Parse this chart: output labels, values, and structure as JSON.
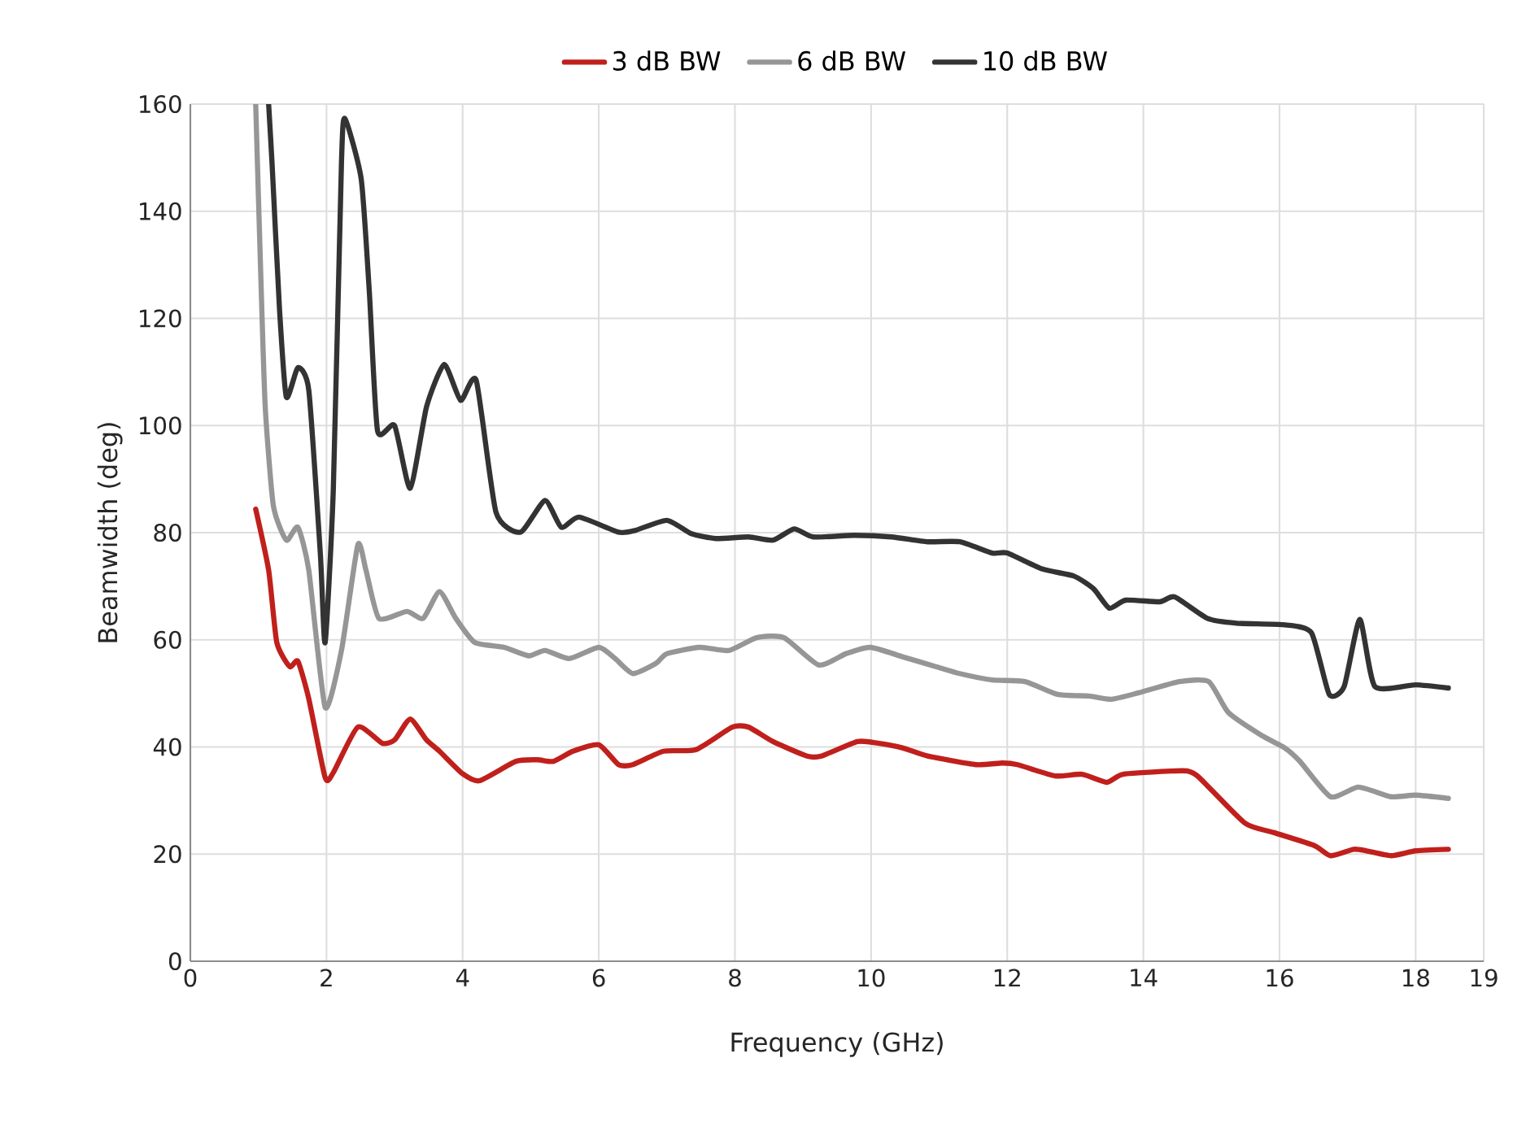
{
  "chart_data": {
    "type": "line",
    "xlabel": "Frequency (GHz)",
    "ylabel": "Beamwidth (deg)",
    "xlim": [
      0,
      19
    ],
    "xticks": [
      0,
      2,
      4,
      6,
      8,
      10,
      12,
      14,
      16,
      18,
      19
    ],
    "ylim": [
      0,
      160
    ],
    "yticks": [
      0,
      20,
      40,
      60,
      80,
      100,
      120,
      140,
      160
    ],
    "grid": true,
    "legend": "top",
    "marker": "none",
    "line_style": "solid",
    "series": [
      {
        "name": "3 dB BW",
        "color": "#c0201c",
        "x": [
          0.96,
          1.15,
          1.27,
          1.46,
          1.58,
          1.74,
          1.98,
          2.1,
          2.46,
          2.82,
          3.0,
          3.23,
          3.47,
          3.66,
          4.0,
          4.25,
          4.78,
          5.1,
          5.33,
          5.62,
          6.0,
          6.29,
          6.5,
          6.95,
          7.43,
          7.96,
          8.2,
          8.56,
          9.06,
          9.27,
          9.8,
          10.1,
          10.47,
          10.83,
          11.54,
          11.93,
          12.15,
          12.7,
          13.1,
          13.46,
          13.7,
          14.41,
          14.65,
          14.82,
          15.49,
          15.92,
          16.51,
          16.75,
          17.09,
          17.28,
          17.64,
          18.0,
          18.48
        ],
        "values": [
          84.4,
          73,
          59.5,
          55,
          56,
          49,
          34.3,
          35.2,
          43.7,
          40.7,
          41.3,
          45.2,
          41.3,
          39.2,
          35,
          33.7,
          37.3,
          37.6,
          37.3,
          39.2,
          40.4,
          36.7,
          36.7,
          39.2,
          39.5,
          43.7,
          43.7,
          41,
          38.3,
          38.3,
          41,
          40.7,
          39.8,
          38.3,
          36.7,
          37,
          36.7,
          34.6,
          34.9,
          33.4,
          34.9,
          35.5,
          35.5,
          34.3,
          25.8,
          24,
          21.6,
          19.7,
          20.9,
          20.6,
          19.7,
          20.6,
          20.9
        ]
      },
      {
        "name": "6 dB BW",
        "color": "#969696",
        "x": [
          0.96,
          1.03,
          1.1,
          1.22,
          1.41,
          1.58,
          1.74,
          1.98,
          2.22,
          2.46,
          2.58,
          2.77,
          3.18,
          3.42,
          3.66,
          3.9,
          4.18,
          4.61,
          4.97,
          5.21,
          5.57,
          6.0,
          6.24,
          6.5,
          6.84,
          7.0,
          7.48,
          7.91,
          8.32,
          8.72,
          9.23,
          9.63,
          9.99,
          10.47,
          10.95,
          11.3,
          11.78,
          12.26,
          12.74,
          13.2,
          13.53,
          13.93,
          14.53,
          14.96,
          15.25,
          15.73,
          16.08,
          16.3,
          16.75,
          17.16,
          17.64,
          18.0,
          18.48
        ],
        "values": [
          160,
          130,
          103.5,
          85,
          78.6,
          81,
          73,
          47.4,
          58,
          77.7,
          73,
          64,
          65.3,
          64,
          69,
          64,
          59.5,
          58.6,
          57,
          58,
          56.5,
          58.6,
          56.5,
          53.7,
          55.6,
          57.4,
          58.6,
          58,
          60.4,
          60.4,
          55.3,
          57.4,
          58.6,
          56.8,
          55,
          53.7,
          52.5,
          52.2,
          49.8,
          49.5,
          48.9,
          50.1,
          52.2,
          52.2,
          46.4,
          42.2,
          39.8,
          37.3,
          30.7,
          32.5,
          30.7,
          31,
          30.4
        ]
      },
      {
        "name": "10 dB BW",
        "color": "#333333",
        "x": [
          1.15,
          1.2,
          1.31,
          1.41,
          1.58,
          1.74,
          1.91,
          1.98,
          2.1,
          2.22,
          2.27,
          2.51,
          2.63,
          2.75,
          3.0,
          3.23,
          3.47,
          3.73,
          3.97,
          4.2,
          4.49,
          4.85,
          5.21,
          5.45,
          5.71,
          6.29,
          6.53,
          7.0,
          7.36,
          7.72,
          8.2,
          8.56,
          8.87,
          9.15,
          9.75,
          10.3,
          10.83,
          11.3,
          11.78,
          12.0,
          12.52,
          12.98,
          13.27,
          13.5,
          13.74,
          14.24,
          14.46,
          14.94,
          15.37,
          16.08,
          16.47,
          16.73,
          16.95,
          17.18,
          17.4,
          18.0,
          18.48
        ],
        "values": [
          160,
          149,
          121.7,
          105.3,
          110.8,
          106.6,
          76,
          59.5,
          88,
          149,
          157.3,
          146,
          124.8,
          99,
          100,
          88.3,
          103.5,
          111.4,
          104.7,
          108.4,
          83.8,
          80.1,
          86,
          81,
          82.9,
          80.1,
          80.4,
          82.3,
          79.8,
          78.9,
          79.2,
          78.6,
          80.7,
          79.2,
          79.5,
          79.2,
          78.3,
          78.3,
          76.2,
          76.2,
          73.2,
          71.9,
          69.5,
          65.9,
          67.4,
          67.1,
          68,
          64,
          63.1,
          62.8,
          61.3,
          49.8,
          51.3,
          63.8,
          51.3,
          51.6,
          51
        ]
      }
    ]
  }
}
